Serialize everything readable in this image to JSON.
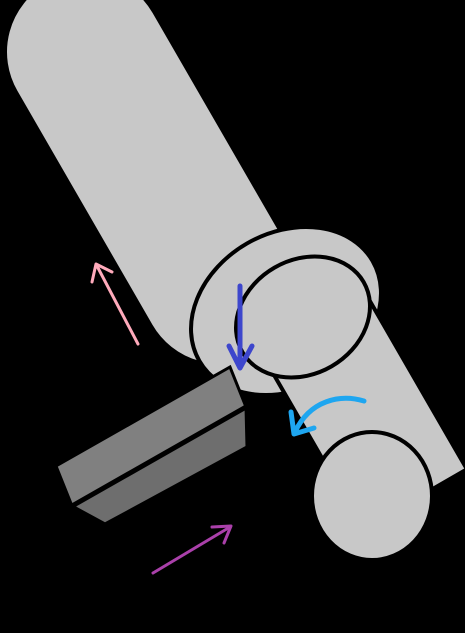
{
  "diagram": {
    "background_color": "#000000",
    "workpiece": {
      "fill_color": "#c8c8c8",
      "outline_color": "#000000"
    },
    "cutting_tool": {
      "face_color": "#808080",
      "side_color": "#6e6e6e",
      "outline_color": "#000000"
    },
    "arrows": [
      {
        "name": "longitudinal-feed-arrow",
        "color": "#ffaabb",
        "icon": "straight-arrow",
        "direction": "up-left"
      },
      {
        "name": "radial-depth-of-cut-arrow",
        "color": "#3d46cc",
        "icon": "straight-arrow",
        "direction": "down"
      },
      {
        "name": "rotation-direction-arrow",
        "color": "#1ea6f0",
        "icon": "curved-arrow",
        "direction": "counterclockwise"
      },
      {
        "name": "tool-approach-arrow",
        "color": "#aa40aa",
        "icon": "straight-arrow",
        "direction": "up-right"
      }
    ]
  }
}
